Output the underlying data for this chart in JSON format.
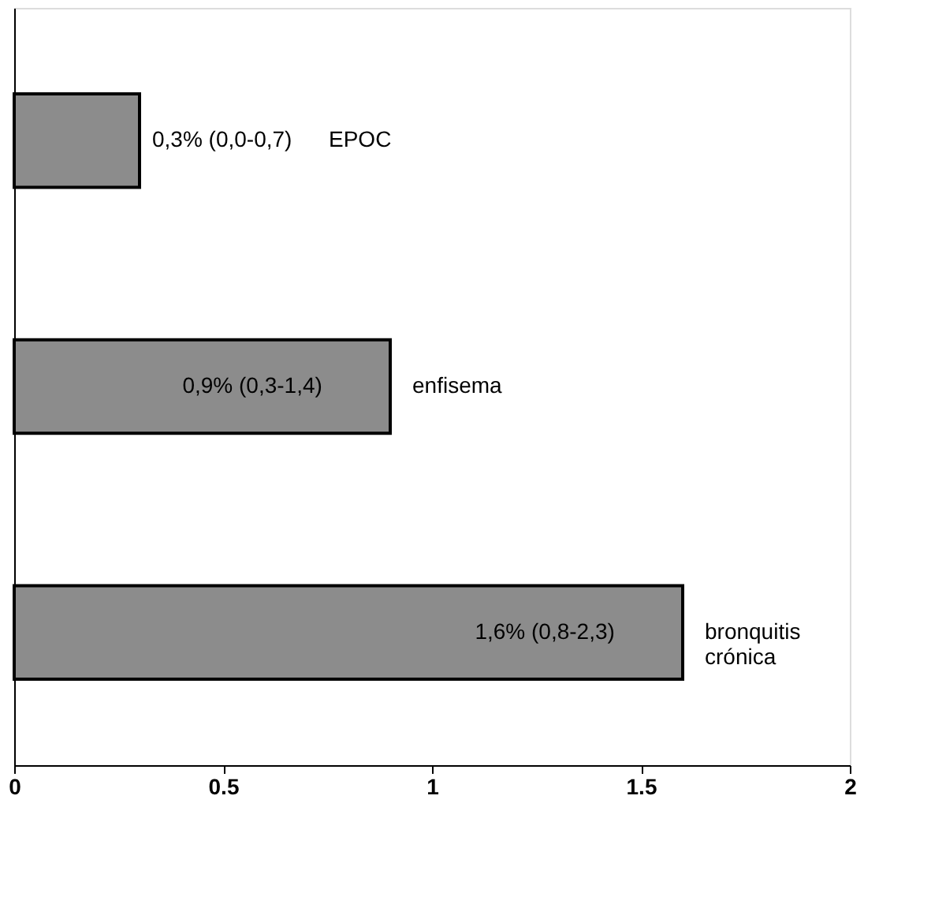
{
  "chart_data": {
    "type": "bar",
    "orientation": "horizontal",
    "categories": [
      "EPOC",
      "enfisema",
      "bronquitis crónica"
    ],
    "values": [
      0.3,
      0.9,
      1.6
    ],
    "value_labels": [
      "0,3% (0,0-0,7)",
      "0,9% (0,3-1,4)",
      "1,6% (0,8-2,3)"
    ],
    "color": "#8c8c8c",
    "xlim": [
      0,
      2
    ],
    "xticks": [
      0,
      0.5,
      1,
      1.5,
      2
    ],
    "grid": false,
    "tick_labels": "x"
  }
}
